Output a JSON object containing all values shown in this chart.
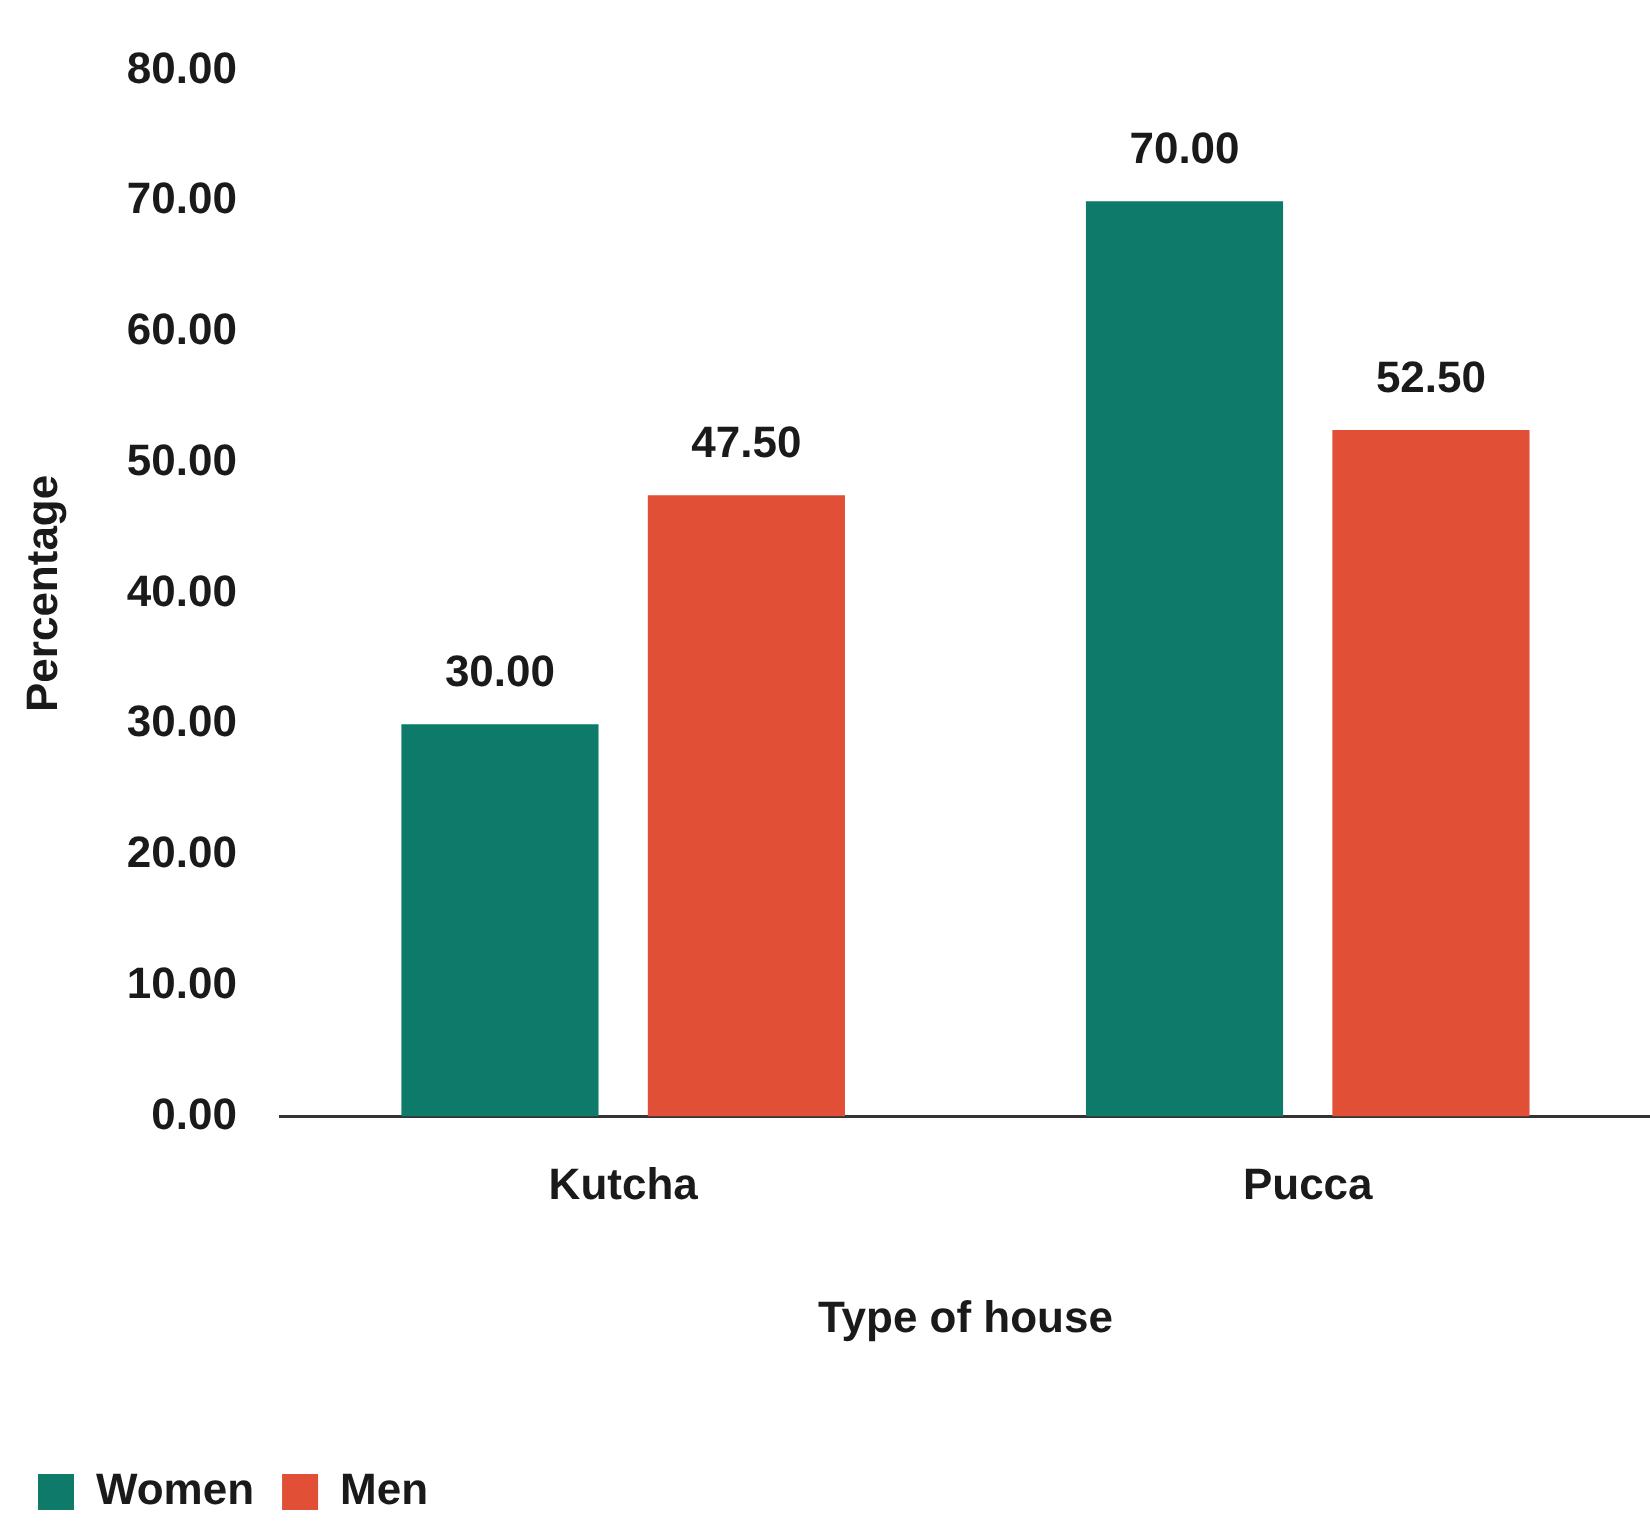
{
  "chart_data": {
    "type": "bar",
    "xlabel": "Type of house",
    "ylabel": "Percentage",
    "categories": [
      "Kutcha",
      "Pucca"
    ],
    "series": [
      {
        "name": "Women",
        "color": "#0e7b6a",
        "values": [
          30,
          70
        ],
        "value_labels": [
          "30.00",
          "70.00"
        ]
      },
      {
        "name": "Men",
        "color": "#e04f36",
        "values": [
          47.5,
          52.5
        ],
        "value_labels": [
          "47.50",
          "52.50"
        ]
      }
    ],
    "ylim": [
      0,
      80
    ],
    "yticks": [
      {
        "value": 0,
        "label": "0.00"
      },
      {
        "value": 10,
        "label": "10.00"
      },
      {
        "value": 20,
        "label": "20.00"
      },
      {
        "value": 30,
        "label": "30.00"
      },
      {
        "value": 40,
        "label": "40.00"
      },
      {
        "value": 50,
        "label": "50.00"
      },
      {
        "value": 60,
        "label": "60.00"
      },
      {
        "value": 70,
        "label": "70.00"
      },
      {
        "value": 80,
        "label": "80.00"
      }
    ],
    "grid": false,
    "legend": "bottom left"
  }
}
